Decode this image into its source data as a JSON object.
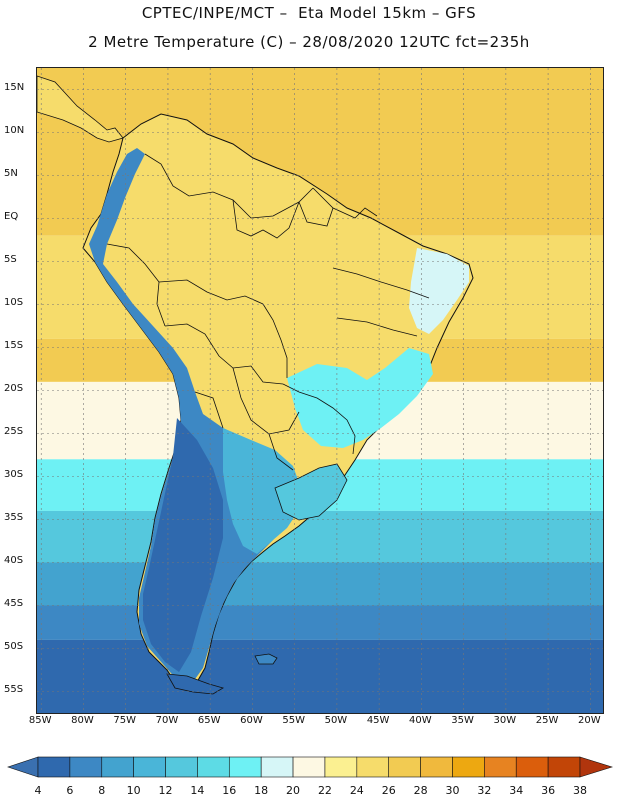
{
  "header": {
    "line1": "CPTEC/INPE/MCT –  Eta Model 15km – GFS",
    "line2": "2 Metre Temperature (C) – 28/08/2020 12UTC fct=235h"
  },
  "axes": {
    "lat_labels": [
      "15N",
      "10N",
      "5N",
      "EQ",
      "5S",
      "10S",
      "15S",
      "20S",
      "25S",
      "30S",
      "35S",
      "40S",
      "45S",
      "50S",
      "55S"
    ],
    "lon_labels": [
      "85W",
      "80W",
      "75W",
      "70W",
      "65W",
      "60W",
      "55W",
      "50W",
      "45W",
      "40W",
      "35W",
      "30W",
      "25W",
      "20W"
    ],
    "lat_range": [
      17.5,
      -57.5
    ],
    "lon_range": [
      -85.5,
      -18.5
    ],
    "grid": true
  },
  "colorbar": {
    "labels": [
      "4",
      "6",
      "8",
      "10",
      "12",
      "14",
      "16",
      "18",
      "20",
      "22",
      "24",
      "26",
      "28",
      "30",
      "32",
      "34",
      "36",
      "38"
    ],
    "colors": [
      "#3a70b0",
      "#2f69ae",
      "#3d88c4",
      "#43a3cf",
      "#4ab5d8",
      "#55c8dd",
      "#5ddbe5",
      "#6ef1f4",
      "#d6f6f7",
      "#fdf8e3",
      "#fbf091",
      "#f6dc6b",
      "#f2cb52",
      "#f0b93d",
      "#eda811",
      "#e78321",
      "#db5e0c",
      "#c24507",
      "#b1350d"
    ]
  },
  "map": {
    "ocean_bands": [
      {
        "lat": 17.5,
        "color": "#f2cb52"
      },
      {
        "lat": -2,
        "color": "#f6dc6b"
      },
      {
        "lat": -14,
        "color": "#f2cb52"
      },
      {
        "lat": -19,
        "color": "#fdf8e3"
      },
      {
        "lat": -28,
        "color": "#6ef1f4"
      },
      {
        "lat": -34,
        "color": "#55c8dd"
      },
      {
        "lat": -40,
        "color": "#43a3cf"
      },
      {
        "lat": -45,
        "color": "#3d88c4"
      },
      {
        "lat": -49,
        "color": "#2f69ae"
      }
    ]
  }
}
